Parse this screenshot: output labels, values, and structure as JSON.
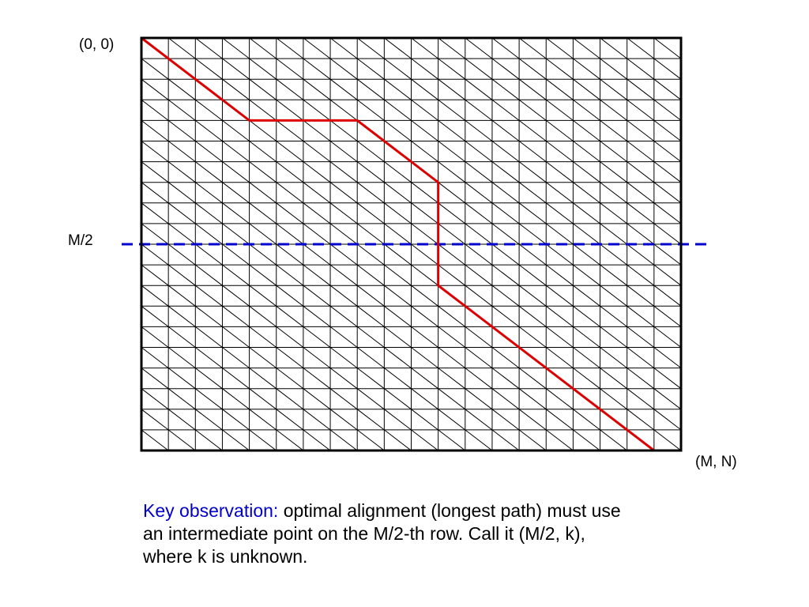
{
  "labels": {
    "origin": "(0, 0)",
    "midrow": "M/2",
    "end": "(M, N)"
  },
  "caption": {
    "key": "Key observation:",
    "line1_rest": " optimal alignment (longest path) must use",
    "line2": "an intermediate point on the M/2-th row. Call it (M/2, k),",
    "line3": "where k is unknown."
  },
  "grid": {
    "columns": 20,
    "rows": 20,
    "diagonals": true
  },
  "path": {
    "description_points": [
      [
        0,
        0
      ],
      [
        4,
        4
      ],
      [
        8,
        4
      ],
      [
        11,
        7
      ],
      [
        11,
        12
      ],
      [
        19,
        20
      ],
      [
        20,
        20
      ]
    ]
  },
  "colors": {
    "grid": "#000000",
    "path": "#dd0000",
    "midline": "#0000cc",
    "key_text": "#0000cc"
  }
}
